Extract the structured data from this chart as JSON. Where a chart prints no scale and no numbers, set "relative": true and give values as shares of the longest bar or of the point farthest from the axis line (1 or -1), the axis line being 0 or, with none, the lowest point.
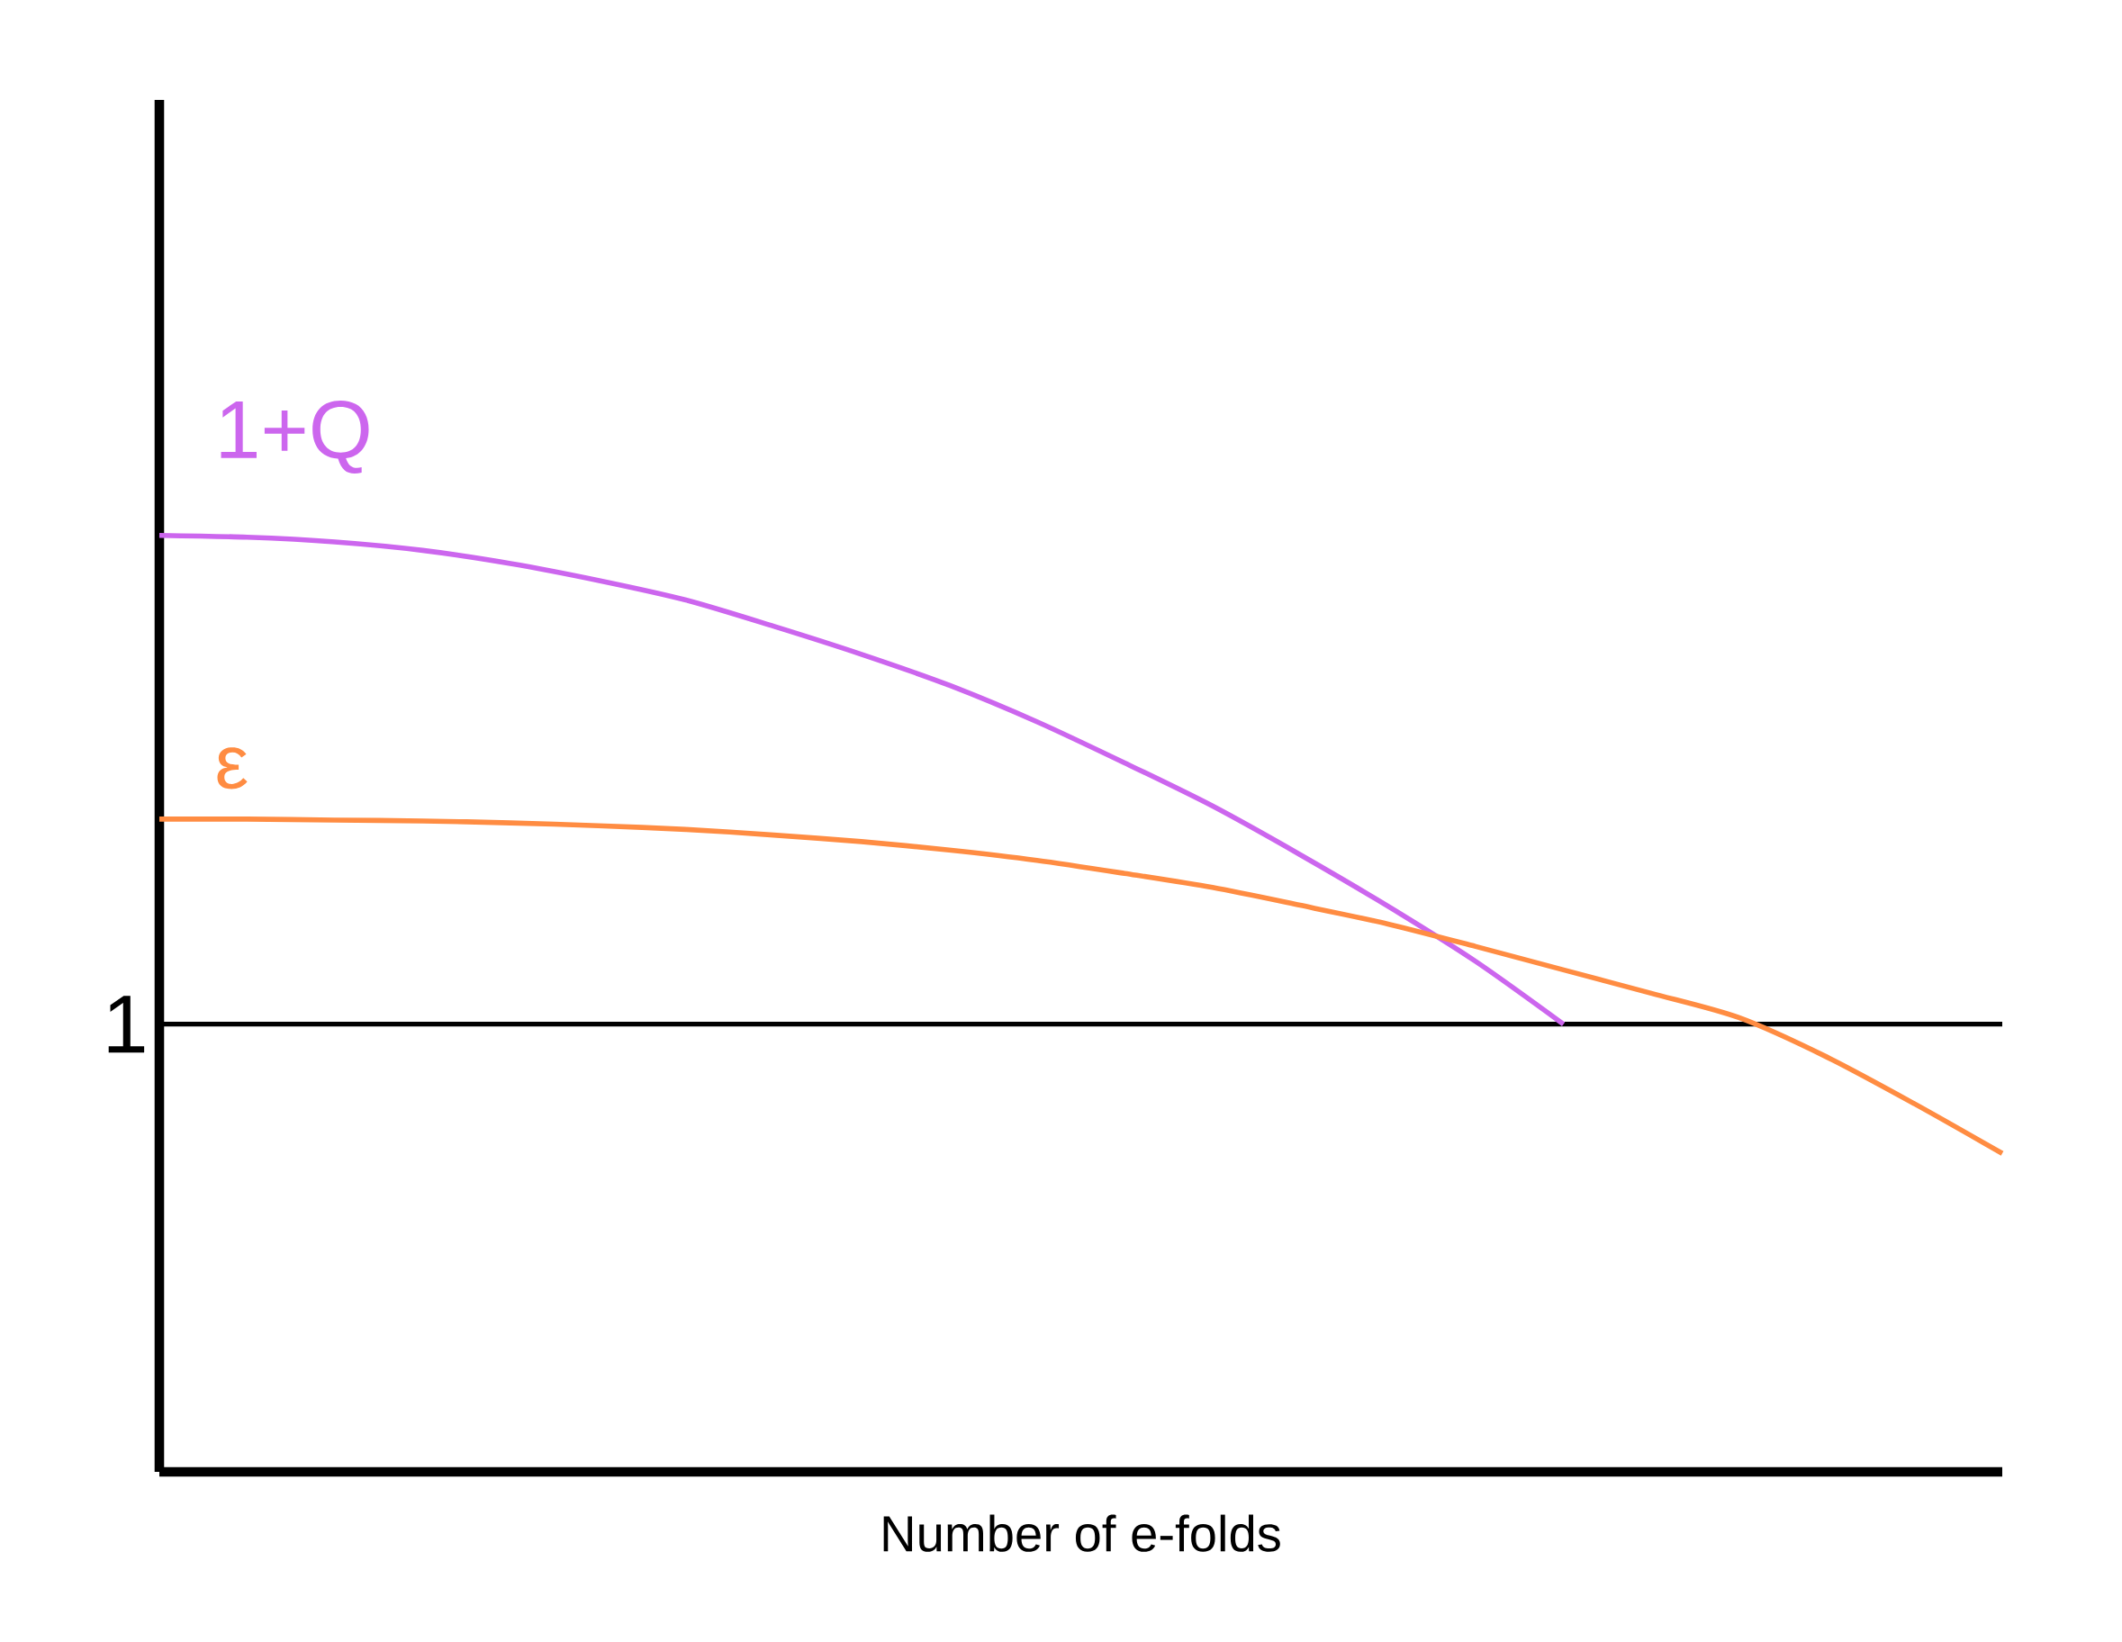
{
  "chart_data": {
    "type": "line",
    "relative": true,
    "xlabel": "Number of e-folds",
    "categories": [
      null,
      null,
      null,
      null,
      null,
      null,
      null,
      null,
      null,
      null,
      null,
      null,
      null,
      null,
      null,
      null,
      null,
      null,
      null,
      null,
      null,
      null
    ],
    "series": [
      {
        "name": "1+Q",
        "color": "#cc66ee",
        "values": [
          1.0,
          0.998,
          0.993,
          0.984,
          0.97,
          0.952,
          0.931,
          0.903,
          0.873,
          0.84,
          0.801,
          0.757,
          0.711,
          0.659,
          0.604,
          0.545,
          0.478,
          null,
          null,
          null,
          null,
          null
        ]
      },
      {
        "name": "ε",
        "color": "#ff8c42",
        "values": [
          0.697,
          0.697,
          0.696,
          0.695,
          0.693,
          0.69,
          0.686,
          0.68,
          0.673,
          0.664,
          0.653,
          0.639,
          0.624,
          0.605,
          0.585,
          0.561,
          0.536,
          0.511,
          0.485,
          0.443,
          0.393,
          0.34
        ]
      }
    ],
    "ref_lines": [
      {
        "axis": "y",
        "value": 0.478,
        "color": "#000000"
      }
    ],
    "annotations": [
      "1"
    ],
    "legend": false,
    "marker": "none",
    "line_style": "solid"
  }
}
